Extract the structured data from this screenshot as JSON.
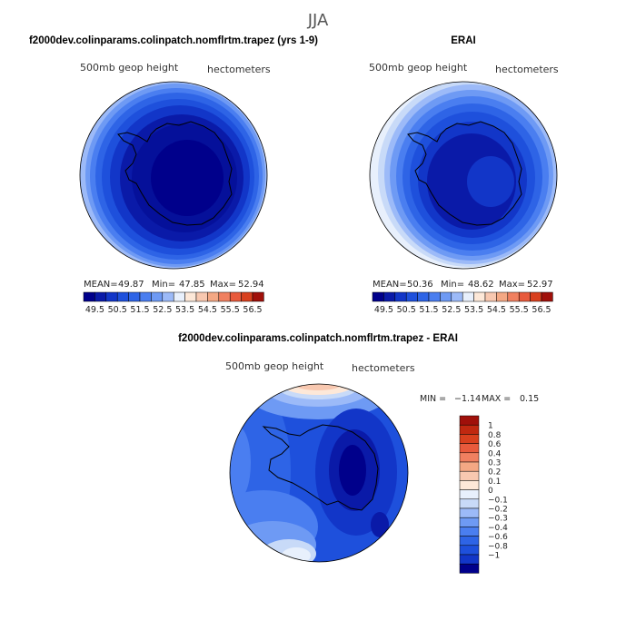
{
  "page_title": "JJA",
  "colors": {
    "blue_scale": [
      "#00008b",
      "#0a1aa8",
      "#1236c8",
      "#1e50dc",
      "#2e64e6",
      "#4a7ef0",
      "#6e9af4",
      "#9cbaf8",
      "#c8daf8",
      "#e8f0fc"
    ],
    "red_scale": [
      "#fde8d8",
      "#f8c8b0",
      "#f4a884",
      "#f08060",
      "#e85a3c",
      "#d8401e",
      "#c02810",
      "#a0100a",
      "#800000"
    ],
    "coastline": "#000000"
  },
  "chart_data": [
    {
      "type": "heatmap",
      "projection": "south-polar-stereographic",
      "title": "f2000dev.colinparams.colinpatch.nomflrtm.trapez (yrs 1-9)",
      "field_label": "500mb geop height",
      "units_label": "hectometers",
      "stats": {
        "mean_label": "MEAN=",
        "mean": "49.87",
        "min_label": "Min=",
        "min": "47.85",
        "max_label": "Max=",
        "max": "52.94"
      },
      "colorbar": {
        "orientation": "horizontal",
        "levels": [
          "49.5",
          "50.5",
          "51.5",
          "52.5",
          "53.5",
          "54.5",
          "55.5",
          "56.5"
        ]
      }
    },
    {
      "type": "heatmap",
      "projection": "south-polar-stereographic",
      "title": "ERAI",
      "field_label": "500mb geop height",
      "units_label": "hectometers",
      "stats": {
        "mean_label": "MEAN=",
        "mean": "50.36",
        "min_label": "Min=",
        "min": "48.62",
        "max_label": "Max=",
        "max": "52.97"
      },
      "colorbar": {
        "orientation": "horizontal",
        "levels": [
          "49.5",
          "50.5",
          "51.5",
          "52.5",
          "53.5",
          "54.5",
          "55.5",
          "56.5"
        ]
      }
    },
    {
      "type": "heatmap",
      "projection": "south-polar-stereographic",
      "title": "f2000dev.colinparams.colinpatch.nomflrtm.trapez - ERAI",
      "field_label": "500mb geop height",
      "units_label": "hectometers",
      "stats": {
        "min_label": "MIN =",
        "min": "−1.14",
        "max_label": "MAX =",
        "max": "0.15"
      },
      "colorbar": {
        "orientation": "vertical",
        "levels": [
          "1",
          "0.8",
          "0.6",
          "0.4",
          "0.3",
          "0.2",
          "0.1",
          "0",
          "−0.1",
          "−0.2",
          "−0.3",
          "−0.4",
          "−0.6",
          "−0.8",
          "−1"
        ]
      }
    }
  ]
}
